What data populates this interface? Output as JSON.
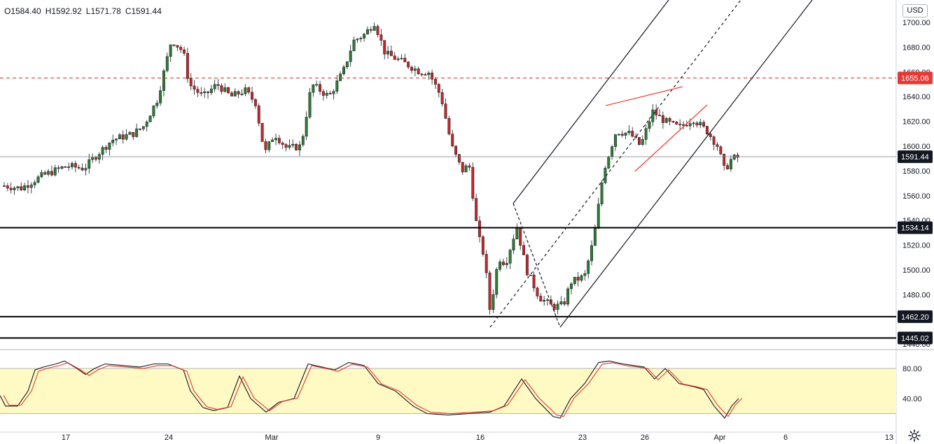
{
  "ohlc": {
    "open": "O1584.40",
    "high": "H1592.92",
    "low": "L1571.78",
    "close": "C1591.44"
  },
  "currency": "USD",
  "colors": {
    "up": "#26a69a",
    "down": "#b71c1c",
    "body_up": "#2e7d32",
    "body_down": "#c62828",
    "stoch_k": "#131722",
    "stoch_d": "#e53935",
    "band_fill": "#fff9c4",
    "level_line": "#000000",
    "resistance_dash": "#e53935",
    "wedge": "#f44336",
    "channel": "#131722"
  },
  "chart_data": {
    "type": "candlestick",
    "price_axis": {
      "ylim": [
        1440,
        1720
      ],
      "ticks": [
        "1700.00",
        "1680.00",
        "1660.00",
        "1640.00",
        "1620.00",
        "1600.00",
        "1580.00",
        "1560.00",
        "1540.00",
        "1520.00",
        "1500.00",
        "1480.00",
        "1460.00",
        "1440.00"
      ]
    },
    "x_axis": {
      "ticks": [
        "17",
        "24",
        "Mar",
        "9",
        "16",
        "23",
        "26",
        "Apr",
        "6",
        "13"
      ]
    },
    "levels": [
      {
        "label": "1655.06",
        "value": 1655.06,
        "style": "dashed"
      },
      {
        "label": "1591.44",
        "value": 1591.44,
        "style": "current"
      },
      {
        "label": "1534.14",
        "value": 1534.14,
        "style": "solid"
      },
      {
        "label": "1462.20",
        "value": 1462.2,
        "style": "solid"
      },
      {
        "label": "1445.02",
        "value": 1445.02,
        "style": "solid"
      }
    ],
    "oscillator": {
      "type": "stochastic",
      "ticks": [
        "80.00",
        "40.00"
      ],
      "band": [
        20,
        80
      ]
    }
  }
}
